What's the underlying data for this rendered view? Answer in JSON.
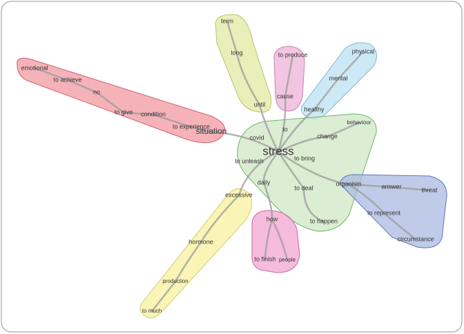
{
  "nodes": [
    {
      "label": "stress"
    },
    {
      "label": "situation"
    },
    {
      "label": "emotional"
    },
    {
      "label": "to achieve"
    },
    {
      "label": "no"
    },
    {
      "label": "to give"
    },
    {
      "label": "condition"
    },
    {
      "label": "to experience"
    },
    {
      "label": "term"
    },
    {
      "label": "long"
    },
    {
      "label": "until"
    },
    {
      "label": "to produce"
    },
    {
      "label": "cause"
    },
    {
      "label": "physical"
    },
    {
      "label": "mental"
    },
    {
      "label": "healthy"
    },
    {
      "label": "to"
    },
    {
      "label": "behaviour"
    },
    {
      "label": "change"
    },
    {
      "label": "covid"
    },
    {
      "label": "to bring"
    },
    {
      "label": "to unleash"
    },
    {
      "label": "daily"
    },
    {
      "label": "to deal"
    },
    {
      "label": "organism"
    },
    {
      "label": "answer"
    },
    {
      "label": "threat"
    },
    {
      "label": "to represent"
    },
    {
      "label": "circumstance"
    },
    {
      "label": "excessive"
    },
    {
      "label": "how"
    },
    {
      "label": "to happen"
    },
    {
      "label": "hormone"
    },
    {
      "label": "to finish"
    },
    {
      "label": "people"
    },
    {
      "label": "production"
    },
    {
      "label": "to much"
    }
  ]
}
